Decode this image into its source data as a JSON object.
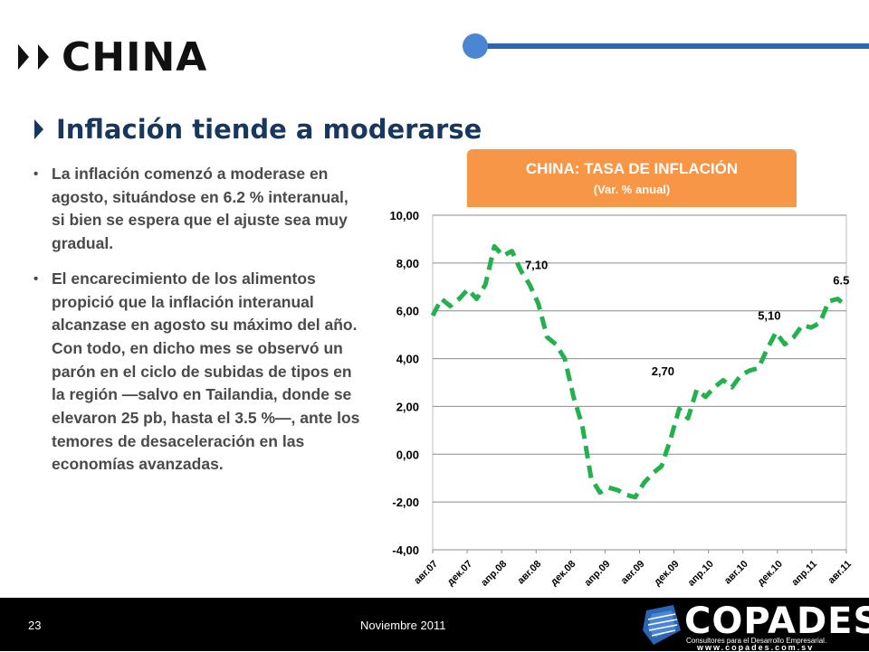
{
  "header": {
    "country": "CHINA"
  },
  "slide": {
    "subtitle": "Inflación tiende a moderarse",
    "bullets": [
      "La inflación comenzó a moderase en agosto, situándose en  6.2 % interanual, si bien se espera que el ajuste sea muy gradual.",
      "El encarecimiento de los alimentos propició que la inflación interanual alcanzase en agosto su máximo del año. Con todo, en dicho mes se observó un parón en el ciclo de subidas de tipos en la región —salvo en Tailandia, donde se elevaron 25 pb, hasta el 3.5 %—, ante los temores de desaceleración en las economías avanzadas."
    ]
  },
  "chart_banner": {
    "title": "CHINA: TASA DE INFLACIÓN",
    "subtitle": "(Var. % anual)"
  },
  "chart_data": {
    "type": "line",
    "title": "CHINA: TASA DE INFLACIÓN",
    "subtitle": "(Var. % anual)",
    "ylim": [
      -4,
      10
    ],
    "y_ticks": [
      "10,00",
      "8,00",
      "6,00",
      "4,00",
      "2,00",
      "0,00",
      "-2,00",
      "-4,00"
    ],
    "x_tick_labels": [
      "авг.07",
      "дек.07",
      "апр.08",
      "авг.08",
      "дек.08",
      "апр.09",
      "авг.09",
      "дек.09",
      "апр.10",
      "авг.10",
      "дек.10",
      "апр.11",
      "авг.11"
    ],
    "grid": true,
    "color": "#22b14c",
    "line_style": "dashed",
    "series": [
      {
        "values": [
          5.8,
          6.5,
          6.2,
          6.5,
          6.9,
          6.5,
          7.1,
          8.7,
          8.3,
          8.5,
          7.7,
          7.1,
          6.3,
          4.9,
          4.6,
          4.0,
          2.4,
          1.2,
          -1.0,
          -1.6,
          -1.4,
          -1.5,
          -1.7,
          -1.8,
          -1.2,
          -0.8,
          -0.5,
          0.6,
          1.9,
          1.5,
          2.7,
          2.4,
          2.8,
          3.1,
          2.8,
          3.3,
          3.5,
          3.6,
          4.4,
          5.1,
          4.6,
          4.9,
          5.4,
          5.3,
          5.5,
          6.4,
          6.5,
          6.2
        ]
      }
    ],
    "annotations": [
      {
        "text": "7,10",
        "index": 11
      },
      {
        "text": "2,70",
        "index": 30
      },
      {
        "text": "5,10",
        "index": 39
      },
      {
        "text": "6.5",
        "index": 46
      }
    ]
  },
  "footer": {
    "page_number": "23",
    "date": "Noviembre 2011",
    "logo": "COPADES",
    "logo_tagline": "Consultores para el Desarrollo Empresarial.",
    "logo_website": "www.copades.com.sv"
  }
}
